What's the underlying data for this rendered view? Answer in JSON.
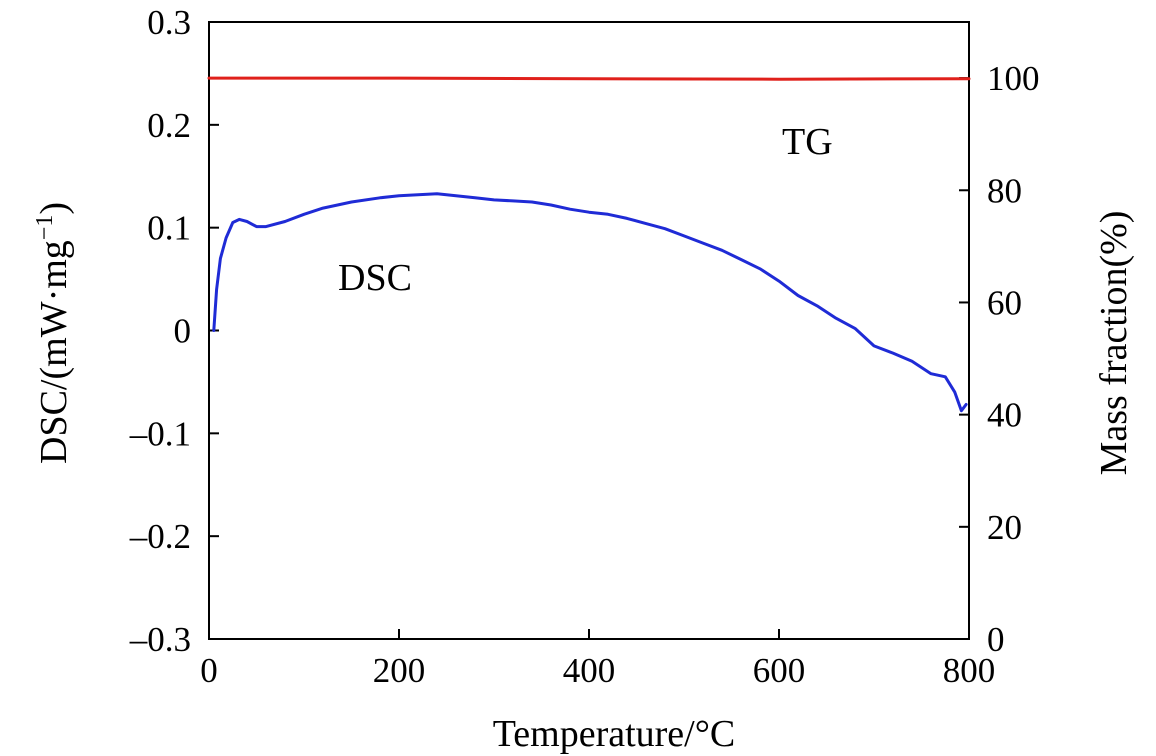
{
  "chart_data": {
    "type": "line",
    "x_axis": {
      "label": "Temperature/°C",
      "range": [
        0,
        800
      ],
      "ticks": [
        0,
        200,
        400,
        600,
        800
      ],
      "tick_labels": [
        "0",
        "200",
        "400",
        "600",
        "800"
      ]
    },
    "y_left": {
      "label_main": "DSC/(mW·mg",
      "label_sup": "−1",
      "label_close": ")",
      "range": [
        -0.3,
        0.3
      ],
      "ticks": [
        -0.3,
        -0.2,
        -0.1,
        0,
        0.1,
        0.2,
        0.3
      ],
      "tick_labels": [
        "–0.3",
        "–0.2",
        "–0.1",
        "0",
        "0.1",
        "0.2",
        "0.3"
      ]
    },
    "y_right": {
      "label": "Mass fraction(%)",
      "range": [
        0,
        110
      ],
      "ticks": [
        0,
        20,
        40,
        60,
        80,
        100
      ],
      "tick_labels": [
        "0",
        "20",
        "40",
        "60",
        "80",
        "100"
      ]
    },
    "series": [
      {
        "name": "DSC",
        "label": "DSC",
        "axis": "left",
        "color": "#1f2bd6",
        "points": [
          [
            5,
            0.0
          ],
          [
            8,
            0.04
          ],
          [
            12,
            0.07
          ],
          [
            18,
            0.09
          ],
          [
            25,
            0.105
          ],
          [
            32,
            0.108
          ],
          [
            40,
            0.106
          ],
          [
            50,
            0.101
          ],
          [
            60,
            0.101
          ],
          [
            80,
            0.106
          ],
          [
            100,
            0.113
          ],
          [
            120,
            0.119
          ],
          [
            150,
            0.125
          ],
          [
            180,
            0.129
          ],
          [
            200,
            0.131
          ],
          [
            220,
            0.132
          ],
          [
            240,
            0.133
          ],
          [
            260,
            0.131
          ],
          [
            280,
            0.129
          ],
          [
            300,
            0.127
          ],
          [
            320,
            0.126
          ],
          [
            340,
            0.125
          ],
          [
            360,
            0.122
          ],
          [
            380,
            0.118
          ],
          [
            400,
            0.115
          ],
          [
            420,
            0.113
          ],
          [
            440,
            0.109
          ],
          [
            460,
            0.104
          ],
          [
            480,
            0.099
          ],
          [
            500,
            0.092
          ],
          [
            520,
            0.085
          ],
          [
            540,
            0.078
          ],
          [
            560,
            0.069
          ],
          [
            580,
            0.06
          ],
          [
            600,
            0.048
          ],
          [
            620,
            0.034
          ],
          [
            640,
            0.024
          ],
          [
            660,
            0.012
          ],
          [
            680,
            0.002
          ],
          [
            700,
            -0.015
          ],
          [
            720,
            -0.022
          ],
          [
            740,
            -0.03
          ],
          [
            760,
            -0.042
          ],
          [
            775,
            -0.045
          ],
          [
            785,
            -0.06
          ],
          [
            792,
            -0.078
          ],
          [
            797,
            -0.072
          ]
        ]
      },
      {
        "name": "TG",
        "label": "TG",
        "axis": "right",
        "color": "#e0201b",
        "points": [
          [
            0,
            100.0
          ],
          [
            200,
            100.0
          ],
          [
            400,
            99.9
          ],
          [
            600,
            99.8
          ],
          [
            800,
            99.9
          ]
        ]
      }
    ]
  }
}
